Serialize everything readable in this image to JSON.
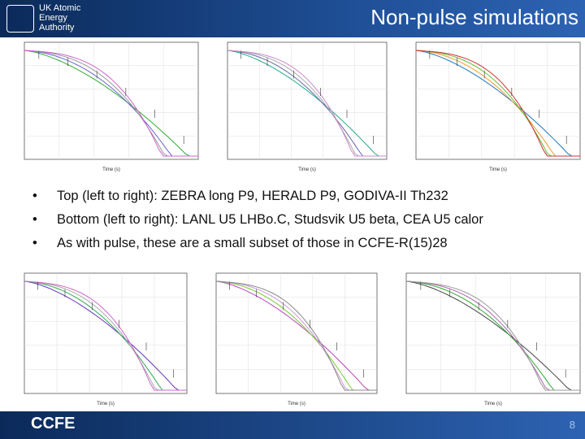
{
  "header": {
    "logo_lines": [
      "UK Atomic",
      "Energy",
      "Authority"
    ],
    "title": "Non-pulse simulations"
  },
  "bullets": [
    "Top (left to right): ZEBRA long P9, HERALD P9, GODIVA-II Th232",
    "Bottom (left to right): LANL U5 LHBo.C, Studsvik U5 beta, CEA U5 calor",
    "As with pulse, these are a small subset of those in CCFE-R(15)28"
  ],
  "plots": [
    {
      "x_label": "Time (s)"
    },
    {
      "x_label": "Time (s)"
    },
    {
      "x_label": "Time (s)"
    },
    {
      "x_label": "Time (s)"
    },
    {
      "x_label": "Time (s)"
    },
    {
      "x_label": "Time (s)"
    }
  ],
  "footer": {
    "logo": "CCFE",
    "page": "8"
  }
}
